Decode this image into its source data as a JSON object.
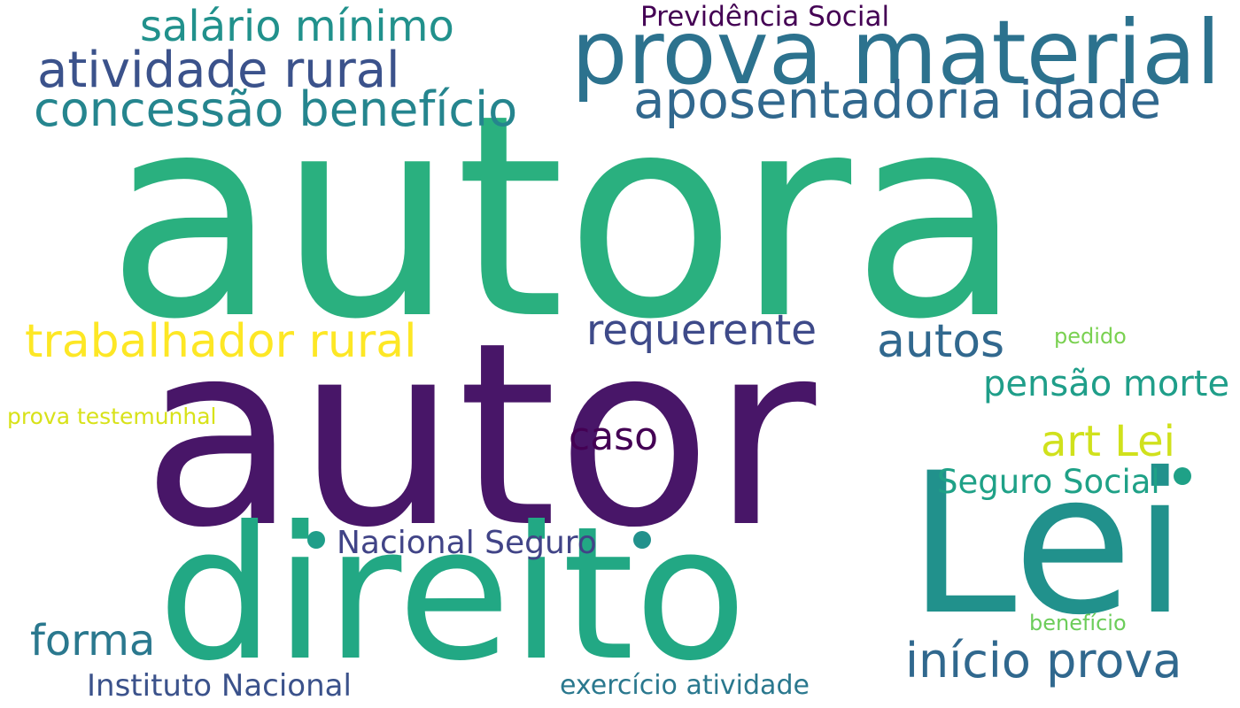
{
  "words": [
    {
      "id": "autora",
      "text": "autora",
      "color": "#2ab07f"
    },
    {
      "id": "autor",
      "text": "autor",
      "color": "#481668"
    },
    {
      "id": "direito",
      "text": "direito",
      "color": "#22a884"
    },
    {
      "id": "lei",
      "text": "Lei",
      "color": "#21918c"
    },
    {
      "id": "prova-material",
      "text": "prova material",
      "color": "#2c728e"
    },
    {
      "id": "aposentadoria-idade",
      "text": "aposentadoria idade",
      "color": "#31688e"
    },
    {
      "id": "atividade-rural",
      "text": "atividade rural",
      "color": "#3b528b"
    },
    {
      "id": "salario-minimo",
      "text": "salário mínimo",
      "color": "#21918c"
    },
    {
      "id": "concessao-beneficio",
      "text": "concessão benefício",
      "color": "#25858e"
    },
    {
      "id": "previdencia-social",
      "text": "Previdência Social",
      "color": "#440154"
    },
    {
      "id": "trabalhador-rural",
      "text": "trabalhador rural",
      "color": "#fde725"
    },
    {
      "id": "requerente",
      "text": "requerente",
      "color": "#3e4a89"
    },
    {
      "id": "autos",
      "text": "autos",
      "color": "#31688e"
    },
    {
      "id": "pedido",
      "text": "pedido",
      "color": "#7ad151"
    },
    {
      "id": "pensao-morte",
      "text": "pensão morte",
      "color": "#1f9e89"
    },
    {
      "id": "prova-testemunhal",
      "text": "prova testemunhal",
      "color": "#d8e219"
    },
    {
      "id": "caso",
      "text": "caso",
      "color": "#440154"
    },
    {
      "id": "art-lei",
      "text": "art Lei",
      "color": "#d0e11c"
    },
    {
      "id": "seguro-social",
      "text": "Seguro Social",
      "color": "#1fa187"
    },
    {
      "id": "nacional-seguro",
      "text": "Nacional Seguro",
      "color": "#414487"
    },
    {
      "id": "forma",
      "text": "forma",
      "color": "#2a788e"
    },
    {
      "id": "inicio-prova",
      "text": "início prova",
      "color": "#30688e"
    },
    {
      "id": "beneficio",
      "text": "benefício",
      "color": "#6ccd5a"
    },
    {
      "id": "instituto-nacional",
      "text": "Instituto Nacional",
      "color": "#3b528b"
    },
    {
      "id": "exercicio-atividade",
      "text": "exercício atividade",
      "color": "#2a788e"
    }
  ],
  "dots": [
    {
      "id": "dot-1",
      "color": "#1f9e89"
    },
    {
      "id": "dot-2",
      "color": "#1fa187"
    },
    {
      "id": "dot-3",
      "color": "#21918c"
    }
  ]
}
